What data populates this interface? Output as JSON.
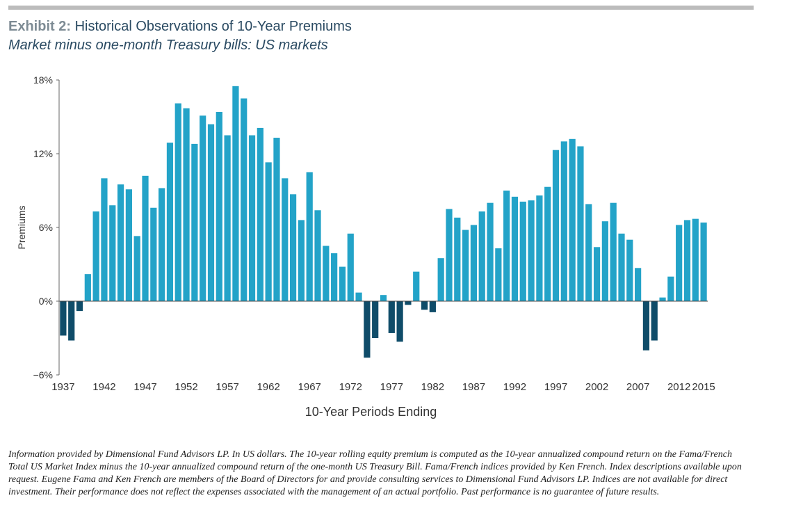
{
  "header": {
    "exhibit_label": "Exhibit 2:",
    "title": "Historical Observations of 10-Year Premiums",
    "subtitle": "Market minus one-month Treasury bills: US markets"
  },
  "colors": {
    "positive_bar": "#23a3c8",
    "negative_bar": "#0f4c69",
    "title_text": "#2a4a62",
    "exhibit_label": "#7d8b94",
    "axis": "#666666"
  },
  "chart_data": {
    "type": "bar",
    "title": "Historical Observations of 10-Year Premiums",
    "subtitle": "Market minus one-month Treasury bills: US markets",
    "xlabel": "10-Year Periods Ending",
    "ylabel": "Premiums",
    "ylim": [
      -6,
      18
    ],
    "yticks": [
      -6,
      0,
      6,
      12,
      18
    ],
    "ytick_labels": [
      "−6%",
      "0%",
      "6%",
      "12%",
      "18%"
    ],
    "xtick_labels": [
      "1937",
      "1942",
      "1947",
      "1952",
      "1957",
      "1962",
      "1967",
      "1972",
      "1977",
      "1982",
      "1987",
      "1992",
      "1997",
      "2002",
      "2007",
      "2012",
      "2015"
    ],
    "categories": [
      "1937",
      "1938",
      "1939",
      "1940",
      "1941",
      "1942",
      "1943",
      "1944",
      "1945",
      "1946",
      "1947",
      "1948",
      "1949",
      "1950",
      "1951",
      "1952",
      "1953",
      "1954",
      "1955",
      "1956",
      "1957",
      "1958",
      "1959",
      "1960",
      "1961",
      "1962",
      "1963",
      "1964",
      "1965",
      "1966",
      "1967",
      "1968",
      "1969",
      "1970",
      "1971",
      "1972",
      "1973",
      "1974",
      "1975",
      "1976",
      "1977",
      "1978",
      "1979",
      "1980",
      "1981",
      "1982",
      "1983",
      "1984",
      "1985",
      "1986",
      "1987",
      "1988",
      "1989",
      "1990",
      "1991",
      "1992",
      "1993",
      "1994",
      "1995",
      "1996",
      "1997",
      "1998",
      "1999",
      "2000",
      "2001",
      "2002",
      "2003",
      "2004",
      "2005",
      "2006",
      "2007",
      "2008",
      "2009",
      "2010",
      "2011",
      "2012",
      "2013",
      "2014",
      "2015"
    ],
    "values": [
      -2.8,
      -3.2,
      -0.8,
      2.2,
      7.3,
      10.0,
      7.8,
      9.5,
      9.1,
      5.3,
      10.2,
      7.6,
      9.2,
      12.9,
      16.1,
      15.7,
      12.8,
      15.1,
      14.4,
      15.4,
      13.5,
      17.5,
      16.5,
      13.5,
      14.1,
      11.3,
      13.3,
      10.0,
      8.7,
      6.6,
      10.5,
      7.4,
      4.5,
      3.9,
      2.8,
      5.5,
      0.7,
      -4.6,
      -3.0,
      0.5,
      -2.6,
      -3.3,
      -0.3,
      2.4,
      -0.7,
      -0.9,
      3.5,
      7.5,
      6.8,
      5.8,
      6.2,
      7.3,
      8.0,
      4.3,
      9.0,
      8.5,
      8.1,
      8.2,
      8.6,
      9.3,
      12.3,
      13.0,
      13.2,
      12.6,
      7.9,
      4.4,
      6.5,
      8.0,
      5.5,
      5.0,
      2.7,
      -4.0,
      -3.2,
      0.3,
      2.0,
      6.2,
      6.6,
      6.7,
      6.4
    ]
  },
  "footnote": "Information provided by Dimensional Fund Advisors LP. In US dollars. The 10-year rolling equity premium is computed as the 10-year annualized compound return on the Fama/French Total US Market Index minus the 10-year annualized compound return of the one-month US Treasury Bill. Fama/French indices provided by Ken French. Index descriptions available upon request. Eugene Fama and Ken French are members of the Board of Directors for and provide consulting services to Dimensional Fund Advisors LP. Indices are not available for direct investment. Their performance does not reflect the expenses associated with the management of an actual portfolio. Past performance is no guarantee of future results."
}
